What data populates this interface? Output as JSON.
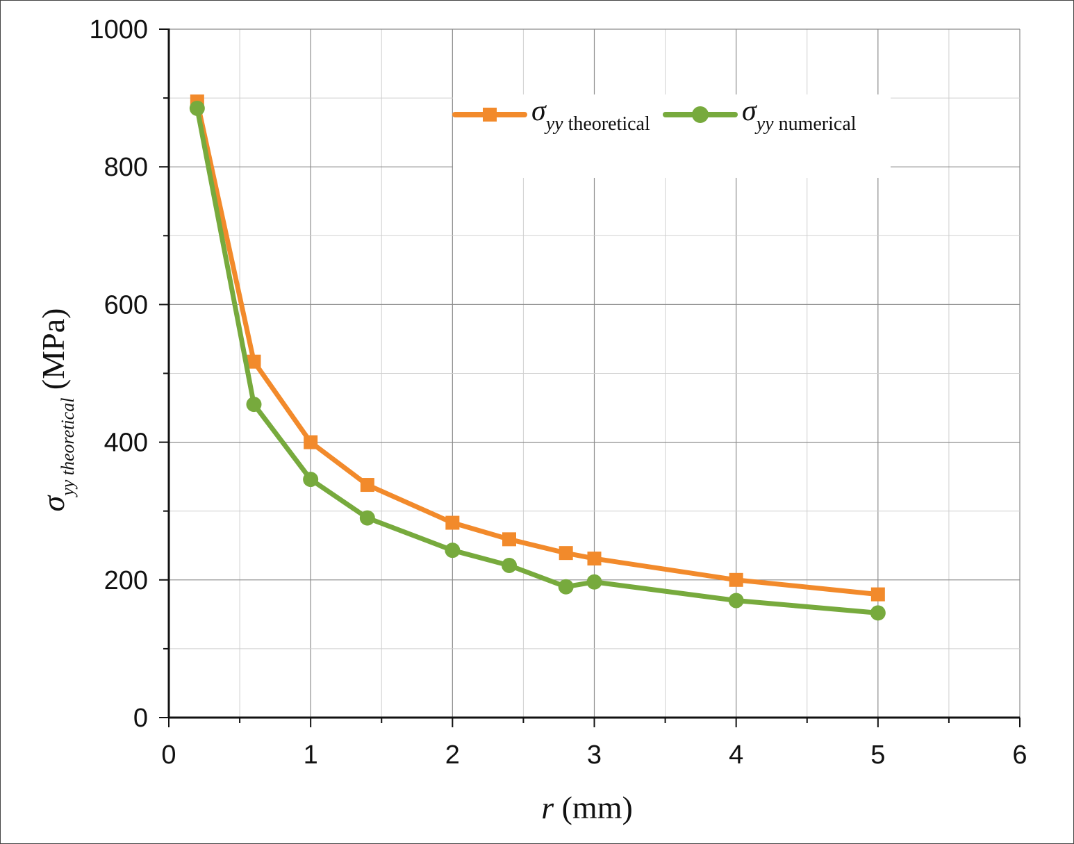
{
  "chart_data": {
    "type": "line",
    "title": "",
    "xlabel": {
      "var": "r",
      "unit": " (mm)"
    },
    "ylabel": {
      "sym": "σ",
      "sub": "yy theoretical",
      "unit": " (MPa)"
    },
    "xlim": [
      0,
      6
    ],
    "ylim": [
      0,
      1000
    ],
    "xticks": [
      "0",
      "1",
      "2",
      "3",
      "4",
      "5",
      "6"
    ],
    "yticks": [
      "0",
      "200",
      "400",
      "600",
      "800",
      "1000"
    ],
    "grid": true,
    "legend_position": "top-right",
    "series": [
      {
        "name": {
          "sym": "σ",
          "sub": "yy",
          "rest": " theoretical"
        },
        "color": "#f28a2b",
        "marker": "square",
        "x": [
          0.2,
          0.6,
          1.0,
          1.4,
          2.0,
          2.4,
          2.8,
          3.0,
          4.0,
          5.0
        ],
        "y": [
          895,
          517,
          400,
          338,
          283,
          259,
          239,
          231,
          200,
          179
        ]
      },
      {
        "name": {
          "sym": "σ",
          "sub": "yy",
          "rest": " numerical"
        },
        "color": "#77aa3d",
        "marker": "circle",
        "x": [
          0.2,
          0.6,
          1.0,
          1.4,
          2.0,
          2.4,
          2.8,
          3.0,
          4.0,
          5.0
        ],
        "y": [
          885,
          455,
          346,
          290,
          243,
          221,
          190,
          197,
          170,
          152
        ]
      }
    ]
  }
}
